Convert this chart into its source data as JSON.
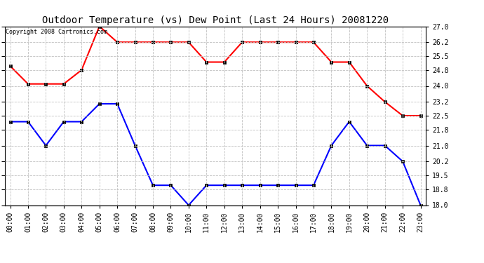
{
  "title": "Outdoor Temperature (vs) Dew Point (Last 24 Hours) 20081220",
  "copyright_text": "Copyright 2008 Cartronics.com",
  "hours": [
    "00:00",
    "01:00",
    "02:00",
    "03:00",
    "04:00",
    "05:00",
    "06:00",
    "07:00",
    "08:00",
    "09:00",
    "10:00",
    "11:00",
    "12:00",
    "13:00",
    "14:00",
    "15:00",
    "16:00",
    "17:00",
    "18:00",
    "19:00",
    "20:00",
    "21:00",
    "22:00",
    "23:00"
  ],
  "temp_red": [
    25.0,
    24.1,
    24.1,
    24.1,
    24.8,
    27.0,
    26.2,
    26.2,
    26.2,
    26.2,
    26.2,
    25.2,
    25.2,
    26.2,
    26.2,
    26.2,
    26.2,
    26.2,
    25.2,
    25.2,
    24.0,
    23.2,
    22.5,
    22.5
  ],
  "temp_blue": [
    22.2,
    22.2,
    21.0,
    22.2,
    22.2,
    23.1,
    23.1,
    21.0,
    19.0,
    19.0,
    18.0,
    19.0,
    19.0,
    19.0,
    19.0,
    19.0,
    19.0,
    19.0,
    21.0,
    22.2,
    21.0,
    21.0,
    20.2,
    18.0
  ],
  "ylim_min": 18.0,
  "ylim_max": 27.0,
  "yticks": [
    18.0,
    18.8,
    19.5,
    20.2,
    21.0,
    21.8,
    22.5,
    23.2,
    24.0,
    24.8,
    25.5,
    26.2,
    27.0
  ],
  "red_color": "#FF0000",
  "blue_color": "#0000FF",
  "bg_color": "#FFFFFF",
  "grid_color": "#C0C0C0",
  "title_fontsize": 10,
  "copyright_fontsize": 6,
  "tick_fontsize": 7,
  "marker": "s",
  "marker_size": 3,
  "line_width": 1.5
}
